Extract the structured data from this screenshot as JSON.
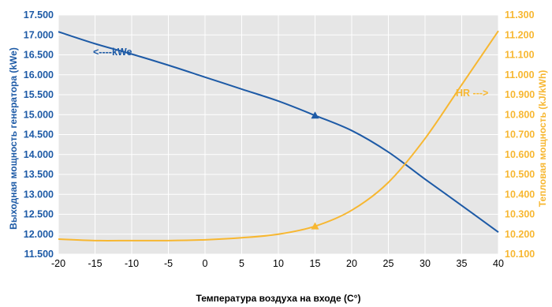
{
  "colors": {
    "left_series": "#1d5aa6",
    "right_series": "#f7b731",
    "plot_bg": "#e6e6e6",
    "grid": "#ffffff"
  },
  "chart_data": {
    "type": "line",
    "xlabel": "Температура воздуха на входе (C°)",
    "x_ticks": [
      -20,
      -15,
      -10,
      -5,
      0,
      5,
      10,
      15,
      20,
      25,
      30,
      35,
      40
    ],
    "xlim": [
      -20,
      40
    ],
    "y_left": {
      "label": "Выходная мощность генератора (kWe)",
      "ylim": [
        11500,
        17500
      ],
      "ticks": [
        11500,
        12000,
        12500,
        13000,
        13500,
        14000,
        14500,
        15000,
        15500,
        16000,
        16500,
        17000,
        17500
      ],
      "tick_labels": [
        "11.500",
        "12.000",
        "12.500",
        "13.000",
        "13.500",
        "14.000",
        "14.500",
        "15.000",
        "15.500",
        "16.000",
        "16.500",
        "17.000",
        "17.500"
      ]
    },
    "y_right": {
      "label": "Тепловая мощность (kJ/kWh)",
      "ylim": [
        10100,
        11300
      ],
      "ticks": [
        10100,
        10200,
        10300,
        10400,
        10500,
        10600,
        10700,
        10800,
        10900,
        11000,
        11100,
        11200,
        11300
      ],
      "tick_labels": [
        "10.100",
        "10.200",
        "10.300",
        "10.400",
        "10.500",
        "10.600",
        "10.700",
        "10.800",
        "10.900",
        "11.000",
        "11.100",
        "11.200",
        "11.300"
      ]
    },
    "grid": true,
    "series": [
      {
        "name": "kWe",
        "axis": "left",
        "x": [
          -20,
          -15,
          -10,
          -5,
          0,
          5,
          10,
          15,
          20,
          25,
          30,
          35,
          40
        ],
        "y": [
          17080,
          16780,
          16520,
          16240,
          15940,
          15640,
          15340,
          14980,
          14600,
          14060,
          13380,
          12720,
          12050
        ],
        "marker": {
          "x": 15,
          "y": 14980
        }
      },
      {
        "name": "HR",
        "axis": "right",
        "x": [
          -20,
          -15,
          -10,
          -5,
          0,
          5,
          10,
          15,
          20,
          25,
          30,
          35,
          40
        ],
        "y": [
          10175,
          10168,
          10168,
          10168,
          10172,
          10182,
          10200,
          10240,
          10320,
          10460,
          10680,
          10950,
          11220
        ],
        "marker": {
          "x": 15,
          "y": 10240
        }
      }
    ],
    "annotations": [
      {
        "text": "<----kWe",
        "series": "kWe"
      },
      {
        "text": "HR --->",
        "series": "HR"
      }
    ]
  }
}
